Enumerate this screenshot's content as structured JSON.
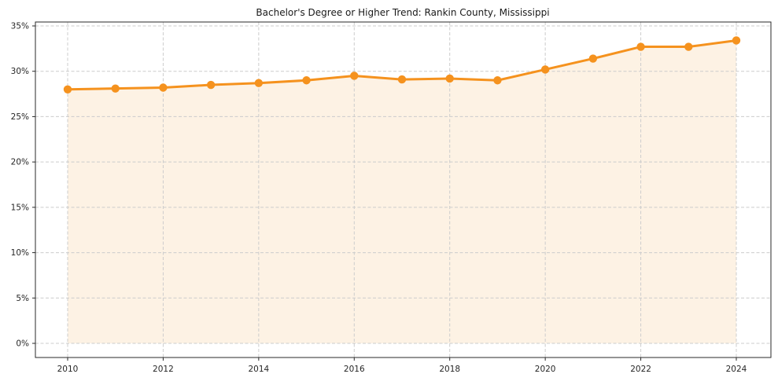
{
  "figure": {
    "background": "#ffffff"
  },
  "chart_data": {
    "type": "line",
    "title": "Bachelor's Degree or Higher Trend: Rankin County, Mississippi",
    "x": [
      2010,
      2011,
      2012,
      2013,
      2014,
      2015,
      2016,
      2017,
      2018,
      2019,
      2020,
      2021,
      2022,
      2023,
      2024
    ],
    "values": [
      28.0,
      28.1,
      28.2,
      28.5,
      28.7,
      29.0,
      29.5,
      29.1,
      29.2,
      29.0,
      30.2,
      31.4,
      32.7,
      32.7,
      33.4
    ],
    "unit": "%",
    "xlabel": "",
    "ylabel": "",
    "ylim": [
      0,
      35
    ],
    "yticks": [
      0,
      5,
      10,
      15,
      20,
      25,
      30,
      35
    ],
    "xticks": [
      2010,
      2012,
      2014,
      2016,
      2018,
      2020,
      2022,
      2024
    ],
    "grid": true,
    "legend": "none",
    "line_color": "#f5921e",
    "marker": "circle",
    "fill": "area-under-line",
    "fill_color": "#fdf2e4",
    "spine_color": "#2a2a2a",
    "grid_color": "#cccccc"
  }
}
